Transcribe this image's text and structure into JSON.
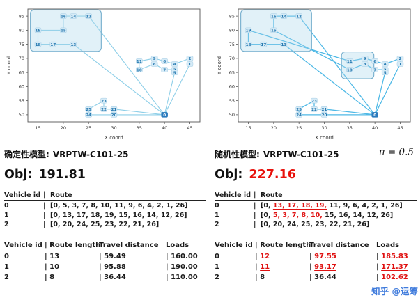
{
  "watermark": "知乎 @运筹",
  "panels": {
    "left": {
      "model_label": "确定性模型:",
      "model_name": "VRPTW-C101-25",
      "obj_label": "Obj:",
      "obj_value": "191.81",
      "obj_color": "#111111",
      "routes_table": {
        "headers": [
          "Vehicle id",
          "Route"
        ],
        "rows": [
          {
            "id": "0",
            "segments": [
              {
                "t": "[0, 5, 3, 7, 8, 10, 11, 9, 6, 4, 2, 1, 26]",
                "hl": false
              }
            ]
          },
          {
            "id": "1",
            "segments": [
              {
                "t": "[0, 13, 17, 18, 19, 15, 16, 14, 12, 26]",
                "hl": false
              }
            ]
          },
          {
            "id": "2",
            "segments": [
              {
                "t": "[0, 20, 24, 25, 23, 22, 21, 26]",
                "hl": false
              }
            ]
          }
        ]
      },
      "stats_table": {
        "headers": [
          "Vehicle id",
          "Route length",
          "Travel distance",
          "Loads"
        ],
        "rows": [
          {
            "cells": [
              {
                "t": "0",
                "hl": false
              },
              {
                "t": "13",
                "hl": false
              },
              {
                "t": "59.49",
                "hl": false
              },
              {
                "t": "160.00",
                "hl": false
              }
            ]
          },
          {
            "cells": [
              {
                "t": "1",
                "hl": false
              },
              {
                "t": "10",
                "hl": false
              },
              {
                "t": "95.88",
                "hl": false
              },
              {
                "t": "190.00",
                "hl": false
              }
            ]
          },
          {
            "cells": [
              {
                "t": "2",
                "hl": false
              },
              {
                "t": "8",
                "hl": false
              },
              {
                "t": "36.44",
                "hl": false
              },
              {
                "t": "110.00",
                "hl": false
              }
            ]
          }
        ]
      }
    },
    "right": {
      "model_label": "随机性模型:",
      "model_name": "VRPTW-C101-25",
      "pi_label": "π = 0.5",
      "obj_label": "Obj:",
      "obj_value": "227.16",
      "obj_color": "#e8120c",
      "routes_table": {
        "headers": [
          "Vehicle id",
          "Route"
        ],
        "rows": [
          {
            "id": "0",
            "segments": [
              {
                "t": "[0, ",
                "hl": false
              },
              {
                "t": "13, 17, 18, 19,",
                "hl": true
              },
              {
                "t": " 11, 9, 6, 4, 2, 1, 26]",
                "hl": false
              }
            ]
          },
          {
            "id": "1",
            "segments": [
              {
                "t": "[0, ",
                "hl": false
              },
              {
                "t": "5, 3, 7, 8, 10,",
                "hl": true
              },
              {
                "t": " 15, 16, 14, 12, 26]",
                "hl": false
              }
            ]
          },
          {
            "id": "2",
            "segments": [
              {
                "t": "[0, 20, 24, 25, 23, 22, 21, 26]",
                "hl": false
              }
            ]
          }
        ]
      },
      "stats_table": {
        "headers": [
          "Vehicle id",
          "Route length",
          "Travel distance",
          "Loads"
        ],
        "rows": [
          {
            "cells": [
              {
                "t": "0",
                "hl": false
              },
              {
                "t": "12",
                "hl": true
              },
              {
                "t": "97.55",
                "hl": true
              },
              {
                "t": "185.83",
                "hl": true
              }
            ]
          },
          {
            "cells": [
              {
                "t": "1",
                "hl": false
              },
              {
                "t": "11",
                "hl": true
              },
              {
                "t": "93.17",
                "hl": true
              },
              {
                "t": "171.37",
                "hl": true
              }
            ]
          },
          {
            "cells": [
              {
                "t": "2",
                "hl": false
              },
              {
                "t": "8",
                "hl": false
              },
              {
                "t": "36.44",
                "hl": false
              },
              {
                "t": "102.62",
                "hl": true
              }
            ]
          }
        ]
      }
    }
  },
  "chart_data": [
    {
      "type": "scatter",
      "title": "deterministic model routes",
      "xlabel": "X coord",
      "ylabel": "Y coord",
      "xlim": [
        13,
        47
      ],
      "ylim": [
        47.5,
        87.5
      ],
      "xticks": [
        15,
        20,
        25,
        30,
        35,
        40,
        45
      ],
      "yticks": [
        50,
        55,
        60,
        65,
        70,
        75,
        80,
        85
      ],
      "grid": false,
      "line_color": "#8ecfe8",
      "line_width": 1.1,
      "box_fill": "#a8d6ea",
      "box_stroke": "#74aecd",
      "nodes": {
        "0": [
          40,
          50
        ],
        "1": [
          45,
          68
        ],
        "2": [
          45,
          70
        ],
        "3": [
          42,
          66
        ],
        "4": [
          42,
          68
        ],
        "5": [
          42,
          65
        ],
        "6": [
          40,
          69
        ],
        "7": [
          40,
          66
        ],
        "8": [
          38,
          68
        ],
        "9": [
          38,
          70
        ],
        "10": [
          35,
          66
        ],
        "11": [
          35,
          69
        ],
        "12": [
          25,
          85
        ],
        "13": [
          22,
          75
        ],
        "14": [
          22,
          85
        ],
        "15": [
          20,
          80
        ],
        "16": [
          20,
          85
        ],
        "17": [
          18,
          75
        ],
        "18": [
          15,
          75
        ],
        "19": [
          15,
          80
        ],
        "20": [
          30,
          50
        ],
        "21": [
          30,
          52
        ],
        "22": [
          28,
          52
        ],
        "23": [
          28,
          55
        ],
        "24": [
          25,
          50
        ],
        "25": [
          25,
          52
        ],
        "26": [
          40,
          50
        ]
      },
      "routes": [
        [
          0,
          5,
          3,
          7,
          8,
          10,
          11,
          9,
          6,
          4,
          2,
          1,
          26
        ],
        [
          0,
          13,
          17,
          18,
          19,
          15,
          16,
          14,
          12,
          26
        ],
        [
          0,
          20,
          24,
          25,
          23,
          22,
          21,
          26
        ]
      ],
      "highlight_boxes": [
        {
          "x0": 13.5,
          "y0": 72.5,
          "x1": 27.5,
          "y1": 87.2
        }
      ]
    },
    {
      "type": "scatter",
      "title": "stochastic model routes",
      "xlabel": "X coord",
      "ylabel": "Y coord",
      "xlim": [
        13,
        47
      ],
      "ylim": [
        47.5,
        87.5
      ],
      "xticks": [
        15,
        20,
        25,
        30,
        35,
        40,
        45
      ],
      "yticks": [
        50,
        55,
        60,
        65,
        70,
        75,
        80,
        85
      ],
      "grid": false,
      "line_color": "#4fb9e6",
      "line_width": 1.3,
      "box_fill": "#a8d6ea",
      "box_stroke": "#74aecd",
      "nodes": {
        "0": [
          40,
          50
        ],
        "1": [
          45,
          68
        ],
        "2": [
          45,
          70
        ],
        "3": [
          42,
          66
        ],
        "4": [
          42,
          68
        ],
        "5": [
          42,
          65
        ],
        "6": [
          40,
          69
        ],
        "7": [
          40,
          66
        ],
        "8": [
          38,
          68
        ],
        "9": [
          38,
          70
        ],
        "10": [
          35,
          66
        ],
        "11": [
          35,
          69
        ],
        "12": [
          25,
          85
        ],
        "13": [
          22,
          75
        ],
        "14": [
          22,
          85
        ],
        "15": [
          20,
          80
        ],
        "16": [
          20,
          85
        ],
        "17": [
          18,
          75
        ],
        "18": [
          15,
          75
        ],
        "19": [
          15,
          80
        ],
        "20": [
          30,
          50
        ],
        "21": [
          30,
          52
        ],
        "22": [
          28,
          52
        ],
        "23": [
          28,
          55
        ],
        "24": [
          25,
          50
        ],
        "25": [
          25,
          52
        ],
        "26": [
          40,
          50
        ]
      },
      "routes": [
        [
          0,
          13,
          17,
          18,
          19,
          11,
          9,
          6,
          4,
          2,
          1,
          26
        ],
        [
          0,
          5,
          3,
          7,
          8,
          10,
          15,
          16,
          14,
          12,
          26
        ],
        [
          0,
          20,
          24,
          25,
          23,
          22,
          21,
          26
        ]
      ],
      "highlight_boxes": [
        {
          "x0": 13.5,
          "y0": 72.5,
          "x1": 27.5,
          "y1": 87.2
        },
        {
          "x0": 33.4,
          "y0": 62.8,
          "x1": 39.8,
          "y1": 72.3
        }
      ]
    }
  ]
}
